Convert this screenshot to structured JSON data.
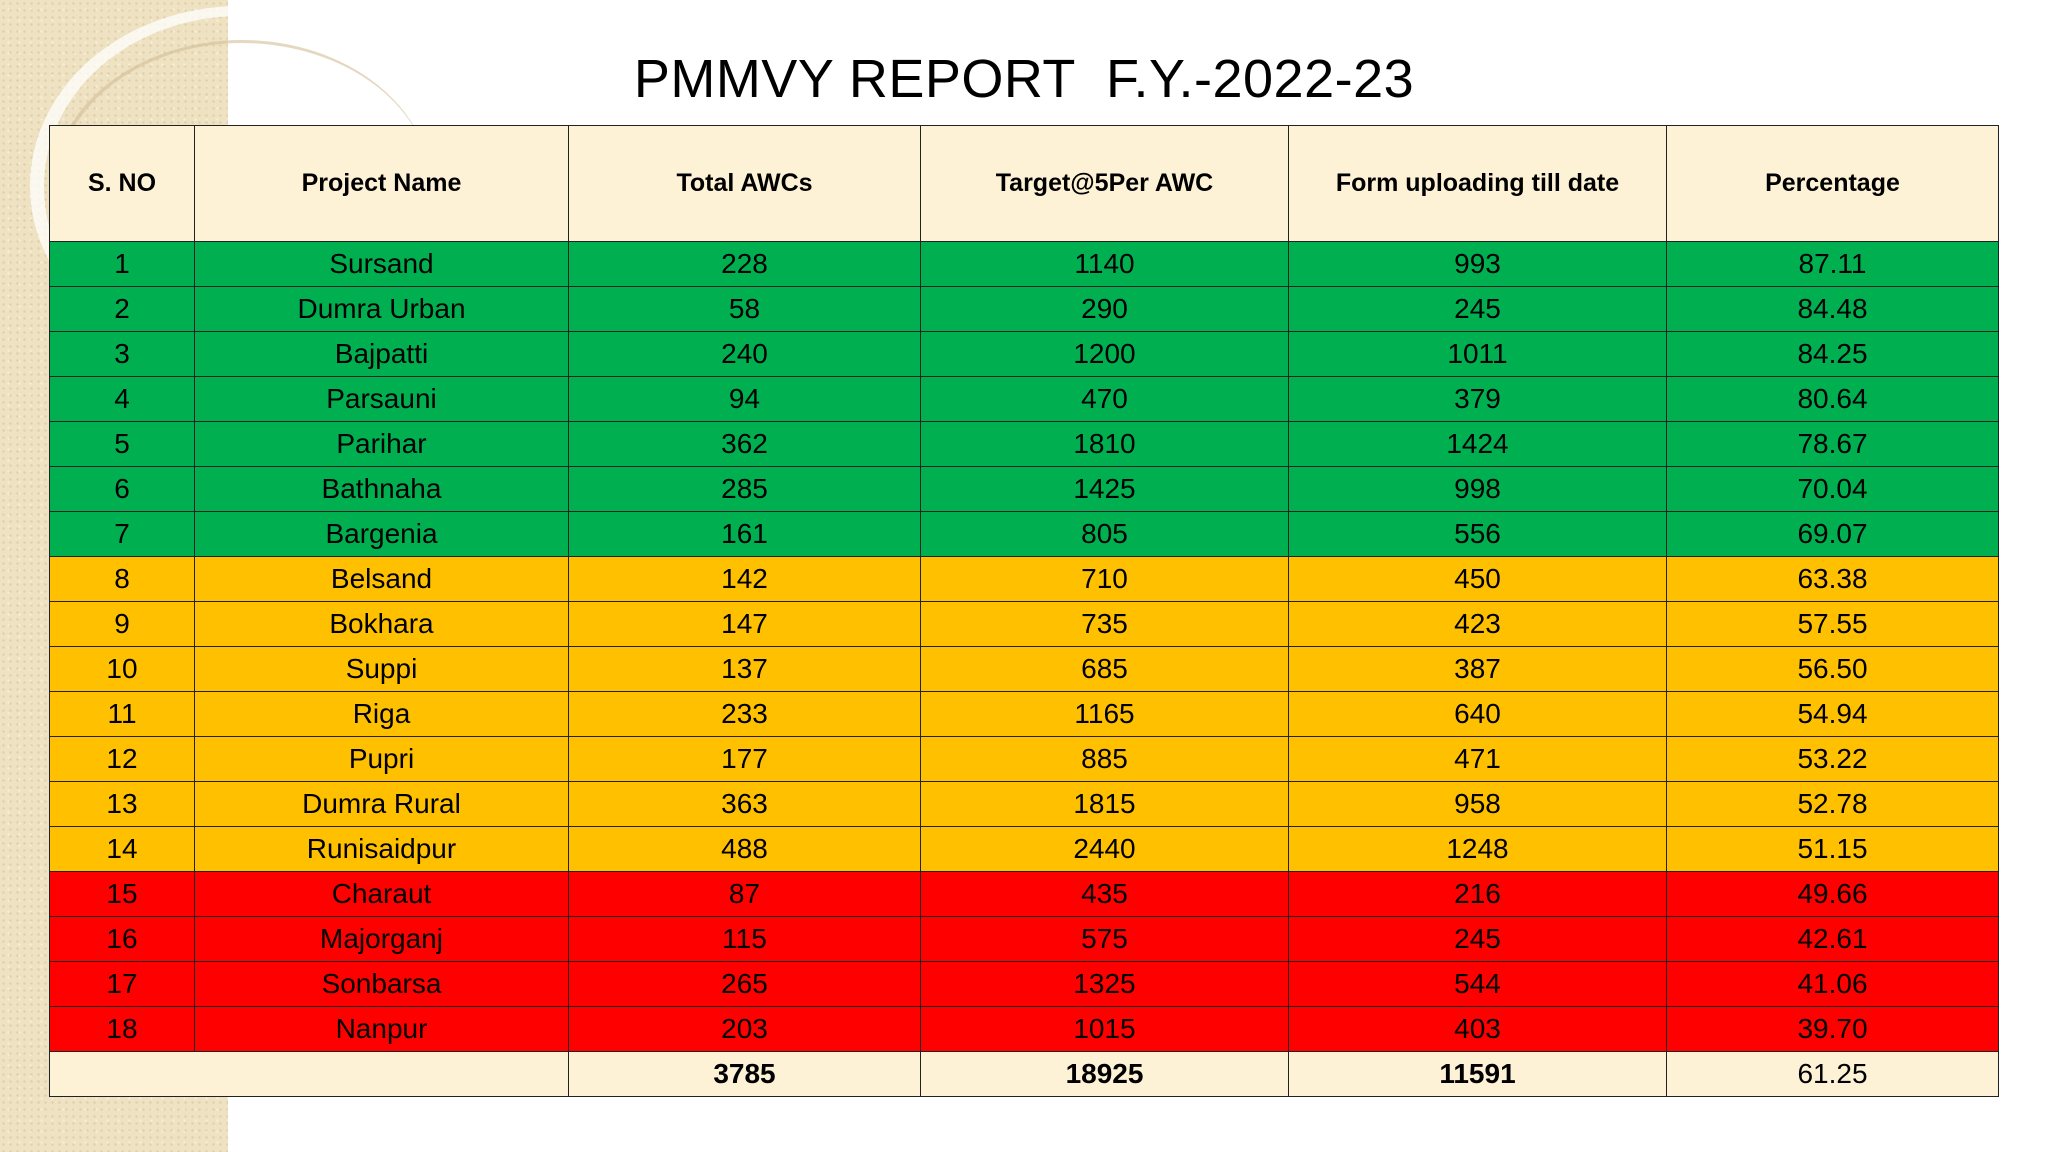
{
  "title": "PMMVY REPORT  F.Y.-2022-23",
  "colors": {
    "green": "#00b050",
    "amber": "#ffc000",
    "red": "#ff0000",
    "header_bg": "#fdf1d6",
    "side_band": "#efe2c2"
  },
  "columns": [
    "S. NO",
    "Project Name",
    "Total AWCs",
    "Target@5Per AWC",
    "Form uploading till date",
    "Percentage"
  ],
  "rows": [
    {
      "sno": "1",
      "project": "Sursand",
      "awcs": "228",
      "target": "1140",
      "uploaded": "993",
      "percentage": "87.11",
      "band": "green"
    },
    {
      "sno": "2",
      "project": "Dumra Urban",
      "awcs": "58",
      "target": "290",
      "uploaded": "245",
      "percentage": "84.48",
      "band": "green"
    },
    {
      "sno": "3",
      "project": "Bajpatti",
      "awcs": "240",
      "target": "1200",
      "uploaded": "1011",
      "percentage": "84.25",
      "band": "green"
    },
    {
      "sno": "4",
      "project": "Parsauni",
      "awcs": "94",
      "target": "470",
      "uploaded": "379",
      "percentage": "80.64",
      "band": "green"
    },
    {
      "sno": "5",
      "project": "Parihar",
      "awcs": "362",
      "target": "1810",
      "uploaded": "1424",
      "percentage": "78.67",
      "band": "green"
    },
    {
      "sno": "6",
      "project": "Bathnaha",
      "awcs": "285",
      "target": "1425",
      "uploaded": "998",
      "percentage": "70.04",
      "band": "green"
    },
    {
      "sno": "7",
      "project": "Bargenia",
      "awcs": "161",
      "target": "805",
      "uploaded": "556",
      "percentage": "69.07",
      "band": "green"
    },
    {
      "sno": "8",
      "project": "Belsand",
      "awcs": "142",
      "target": "710",
      "uploaded": "450",
      "percentage": "63.38",
      "band": "amber"
    },
    {
      "sno": "9",
      "project": "Bokhara",
      "awcs": "147",
      "target": "735",
      "uploaded": "423",
      "percentage": "57.55",
      "band": "amber"
    },
    {
      "sno": "10",
      "project": "Suppi",
      "awcs": "137",
      "target": "685",
      "uploaded": "387",
      "percentage": "56.50",
      "band": "amber"
    },
    {
      "sno": "11",
      "project": "Riga",
      "awcs": "233",
      "target": "1165",
      "uploaded": "640",
      "percentage": "54.94",
      "band": "amber"
    },
    {
      "sno": "12",
      "project": "Pupri",
      "awcs": "177",
      "target": "885",
      "uploaded": "471",
      "percentage": "53.22",
      "band": "amber"
    },
    {
      "sno": "13",
      "project": "Dumra Rural",
      "awcs": "363",
      "target": "1815",
      "uploaded": "958",
      "percentage": "52.78",
      "band": "amber"
    },
    {
      "sno": "14",
      "project": "Runisaidpur",
      "awcs": "488",
      "target": "2440",
      "uploaded": "1248",
      "percentage": "51.15",
      "band": "amber"
    },
    {
      "sno": "15",
      "project": "Charaut",
      "awcs": "87",
      "target": "435",
      "uploaded": "216",
      "percentage": "49.66",
      "band": "red"
    },
    {
      "sno": "16",
      "project": "Majorganj",
      "awcs": "115",
      "target": "575",
      "uploaded": "245",
      "percentage": "42.61",
      "band": "red"
    },
    {
      "sno": "17",
      "project": "Sonbarsa",
      "awcs": "265",
      "target": "1325",
      "uploaded": "544",
      "percentage": "41.06",
      "band": "red"
    },
    {
      "sno": "18",
      "project": "Nanpur",
      "awcs": "203",
      "target": "1015",
      "uploaded": "403",
      "percentage": "39.70",
      "band": "red"
    }
  ],
  "totals": {
    "awcs": "3785",
    "target": "18925",
    "uploaded": "11591",
    "percentage": "61.25"
  }
}
